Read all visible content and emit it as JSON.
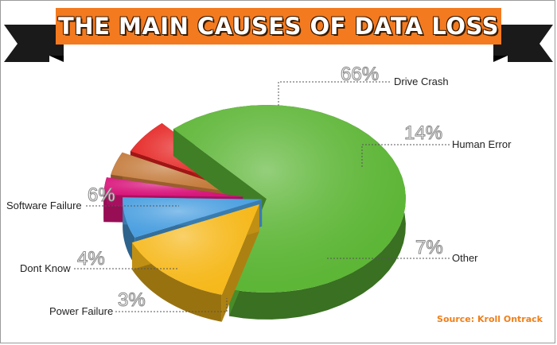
{
  "chart_data": {
    "type": "pie",
    "title": "THE MAIN CAUSES OF DATA LOSS",
    "source": "Source: Kroll Ontrack",
    "slices": [
      {
        "name": "Drive Crash",
        "label": "66%",
        "value": 66,
        "color": "#5cb535"
      },
      {
        "name": "Human Error",
        "label": "14%",
        "value": 14,
        "color": "#f6b81a"
      },
      {
        "name": "Other",
        "label": "7%",
        "value": 7,
        "color": "#4a9fe0"
      },
      {
        "name": "Power Failure",
        "label": "3%",
        "value": 3,
        "color": "#d8147a"
      },
      {
        "name": "Dont Know",
        "label": "4%",
        "value": 4,
        "color": "#c47a3a"
      },
      {
        "name": "Software Failure",
        "label": "6%",
        "value": 6,
        "color": "#e5201e"
      }
    ]
  }
}
